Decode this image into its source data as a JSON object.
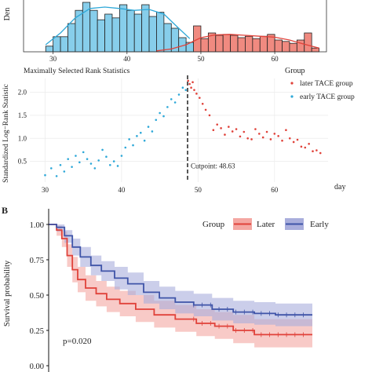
{
  "panel_b_letter": "B",
  "chart_data": [
    {
      "type": "histogram",
      "ylabel": "Den",
      "x_ticks": [
        30,
        40,
        50,
        60
      ],
      "xlim": [
        26,
        67
      ],
      "colors": {
        "early": "#87CEEB",
        "later": "#F08A80",
        "early_line": "#2EA8D8",
        "later_line": "#E0423A"
      },
      "bars_early": [
        {
          "x0": 29,
          "x1": 30,
          "h": 0.12
        },
        {
          "x0": 30,
          "x1": 31,
          "h": 0.32
        },
        {
          "x0": 31,
          "x1": 32,
          "h": 0.32
        },
        {
          "x0": 32,
          "x1": 33,
          "h": 0.6
        },
        {
          "x0": 33,
          "x1": 34,
          "h": 0.88
        },
        {
          "x0": 34,
          "x1": 35,
          "h": 1.05
        },
        {
          "x0": 35,
          "x1": 36,
          "h": 0.88
        },
        {
          "x0": 36,
          "x1": 37,
          "h": 0.68
        },
        {
          "x0": 37,
          "x1": 38,
          "h": 0.8
        },
        {
          "x0": 38,
          "x1": 39,
          "h": 0.72
        },
        {
          "x0": 39,
          "x1": 40,
          "h": 1.0
        },
        {
          "x0": 40,
          "x1": 41,
          "h": 0.88
        },
        {
          "x0": 41,
          "x1": 42,
          "h": 0.8
        },
        {
          "x0": 42,
          "x1": 43,
          "h": 1.0
        },
        {
          "x0": 43,
          "x1": 44,
          "h": 0.75
        },
        {
          "x0": 44,
          "x1": 45,
          "h": 0.84
        },
        {
          "x0": 45,
          "x1": 46,
          "h": 0.6
        },
        {
          "x0": 46,
          "x1": 47,
          "h": 0.5
        },
        {
          "x0": 47,
          "x1": 48,
          "h": 0.3
        },
        {
          "x0": 48,
          "x1": 49,
          "h": 0.2
        }
      ],
      "bars_later": [
        {
          "x0": 48,
          "x1": 49,
          "h": 0.18
        },
        {
          "x0": 49,
          "x1": 50,
          "h": 0.55
        },
        {
          "x0": 50,
          "x1": 51,
          "h": 0.28
        },
        {
          "x0": 51,
          "x1": 52,
          "h": 0.4
        },
        {
          "x0": 52,
          "x1": 53,
          "h": 0.35
        },
        {
          "x0": 53,
          "x1": 54,
          "h": 0.37
        },
        {
          "x0": 54,
          "x1": 55,
          "h": 0.35
        },
        {
          "x0": 55,
          "x1": 56,
          "h": 0.3
        },
        {
          "x0": 56,
          "x1": 57,
          "h": 0.33
        },
        {
          "x0": 57,
          "x1": 58,
          "h": 0.28
        },
        {
          "x0": 58,
          "x1": 59,
          "h": 0.33
        },
        {
          "x0": 59,
          "x1": 60,
          "h": 0.37
        },
        {
          "x0": 60,
          "x1": 61,
          "h": 0.25
        },
        {
          "x0": 61,
          "x1": 62,
          "h": 0.22
        },
        {
          "x0": 62,
          "x1": 63,
          "h": 0.18
        },
        {
          "x0": 63,
          "x1": 64,
          "h": 0.25
        },
        {
          "x0": 64,
          "x1": 65,
          "h": 0.4
        },
        {
          "x0": 65,
          "x1": 66,
          "h": 0.08
        }
      ],
      "density_early": [
        [
          29,
          0.15
        ],
        [
          31,
          0.4
        ],
        [
          33,
          0.72
        ],
        [
          35,
          0.92
        ],
        [
          37,
          0.95
        ],
        [
          39,
          0.92
        ],
        [
          41,
          0.88
        ],
        [
          43,
          0.9
        ],
        [
          45,
          0.8
        ],
        [
          47,
          0.5
        ],
        [
          48.5,
          0.28
        ]
      ],
      "density_later": [
        [
          44,
          0.02
        ],
        [
          46,
          0.06
        ],
        [
          48,
          0.15
        ],
        [
          50,
          0.3
        ],
        [
          52,
          0.36
        ],
        [
          54,
          0.37
        ],
        [
          56,
          0.35
        ],
        [
          58,
          0.33
        ],
        [
          60,
          0.31
        ],
        [
          62,
          0.25
        ],
        [
          64,
          0.16
        ],
        [
          66,
          0.08
        ]
      ]
    },
    {
      "type": "scatter",
      "title": "Maximally Selected Rank Statistics",
      "ylabel": "Standardized Log−Rank Statistic",
      "xlabel": "day",
      "x_ticks": [
        30,
        40,
        50,
        60
      ],
      "y_ticks": [
        0.5,
        1.0,
        1.5,
        2.0
      ],
      "xlim": [
        28,
        67
      ],
      "ylim": [
        0.05,
        2.3
      ],
      "cutpoint": 48.63,
      "cutpoint_label": "Cutpoint: 48.63",
      "legend_title": "Group",
      "legend_position": "right",
      "series": [
        {
          "name": "later TACE group",
          "color": "#E0423A",
          "points": [
            [
              48.7,
              2.25
            ],
            [
              48.9,
              2.18
            ],
            [
              49.1,
              2.1
            ],
            [
              49.3,
              2.22
            ],
            [
              49.5,
              2.05
            ],
            [
              49.8,
              1.97
            ],
            [
              50.2,
              1.88
            ],
            [
              50.6,
              1.75
            ],
            [
              51.0,
              1.62
            ],
            [
              51.5,
              1.5
            ],
            [
              52.0,
              1.18
            ],
            [
              52.5,
              1.3
            ],
            [
              53.0,
              1.22
            ],
            [
              53.5,
              1.08
            ],
            [
              54.0,
              1.25
            ],
            [
              54.5,
              1.15
            ],
            [
              55.0,
              1.2
            ],
            [
              55.5,
              1.04
            ],
            [
              56.0,
              1.14
            ],
            [
              56.5,
              1.0
            ],
            [
              57.0,
              0.98
            ],
            [
              57.5,
              1.2
            ],
            [
              58.0,
              1.1
            ],
            [
              58.5,
              1.02
            ],
            [
              59.0,
              1.14
            ],
            [
              59.5,
              0.98
            ],
            [
              60.0,
              1.1
            ],
            [
              60.5,
              1.05
            ],
            [
              61.0,
              0.95
            ],
            [
              61.5,
              1.18
            ],
            [
              62.0,
              1.0
            ],
            [
              62.5,
              0.92
            ],
            [
              63.0,
              0.97
            ],
            [
              63.5,
              0.82
            ],
            [
              64.0,
              0.8
            ],
            [
              64.5,
              0.88
            ],
            [
              65.0,
              0.72
            ],
            [
              65.5,
              0.74
            ],
            [
              66.0,
              0.68
            ]
          ]
        },
        {
          "name": "early TACE group",
          "color": "#2EA8D8",
          "points": [
            [
              30.0,
              0.2
            ],
            [
              30.8,
              0.35
            ],
            [
              31.5,
              0.18
            ],
            [
              32.0,
              0.42
            ],
            [
              32.5,
              0.28
            ],
            [
              33.0,
              0.55
            ],
            [
              33.5,
              0.38
            ],
            [
              34.0,
              0.62
            ],
            [
              34.5,
              0.48
            ],
            [
              35.0,
              0.7
            ],
            [
              35.5,
              0.55
            ],
            [
              36.0,
              0.45
            ],
            [
              36.5,
              0.35
            ],
            [
              37.0,
              0.52
            ],
            [
              37.5,
              0.75
            ],
            [
              38.0,
              0.6
            ],
            [
              38.5,
              0.42
            ],
            [
              39.0,
              0.5
            ],
            [
              39.5,
              0.4
            ],
            [
              40.0,
              0.62
            ],
            [
              40.5,
              0.8
            ],
            [
              41.0,
              0.98
            ],
            [
              41.5,
              0.85
            ],
            [
              42.0,
              1.05
            ],
            [
              42.5,
              1.12
            ],
            [
              43.0,
              0.95
            ],
            [
              43.5,
              1.25
            ],
            [
              44.0,
              1.15
            ],
            [
              44.5,
              1.4
            ],
            [
              45.0,
              1.55
            ],
            [
              45.5,
              1.48
            ],
            [
              46.0,
              1.68
            ],
            [
              46.5,
              1.85
            ],
            [
              47.0,
              1.78
            ],
            [
              47.5,
              1.95
            ],
            [
              48.0,
              2.1
            ],
            [
              48.4,
              2.05
            ]
          ]
        }
      ]
    },
    {
      "type": "line",
      "subtype": "kaplan-meier",
      "ylabel": "Survival probability",
      "y_ticks": [
        0.0,
        0.25,
        0.5,
        0.75,
        1.0
      ],
      "y_tick_labels": [
        "0.00",
        "0.25",
        "0.50",
        "0.75",
        "1.00"
      ],
      "ylim": [
        0,
        1.02
      ],
      "xlim": [
        0,
        1
      ],
      "legend_title": "Group",
      "legend_position": "top-right",
      "annotation": "p=0.020",
      "series": [
        {
          "name": "Later",
          "color": "#E0423A",
          "band_color": "#F4A7A2",
          "points": [
            [
              0,
              1.0
            ],
            [
              0.03,
              0.96
            ],
            [
              0.05,
              0.9
            ],
            [
              0.07,
              0.78
            ],
            [
              0.09,
              0.68
            ],
            [
              0.11,
              0.61
            ],
            [
              0.14,
              0.55
            ],
            [
              0.18,
              0.51
            ],
            [
              0.22,
              0.47
            ],
            [
              0.27,
              0.44
            ],
            [
              0.33,
              0.4
            ],
            [
              0.4,
              0.36
            ],
            [
              0.48,
              0.33
            ],
            [
              0.56,
              0.3
            ],
            [
              0.63,
              0.28
            ],
            [
              0.7,
              0.25
            ],
            [
              0.78,
              0.22
            ],
            [
              0.88,
              0.22
            ],
            [
              1.0,
              0.22
            ]
          ],
          "upper": [
            [
              0,
              1.0
            ],
            [
              0.03,
              0.99
            ],
            [
              0.05,
              0.95
            ],
            [
              0.07,
              0.86
            ],
            [
              0.09,
              0.77
            ],
            [
              0.11,
              0.7
            ],
            [
              0.14,
              0.64
            ],
            [
              0.18,
              0.6
            ],
            [
              0.22,
              0.56
            ],
            [
              0.27,
              0.53
            ],
            [
              0.33,
              0.5
            ],
            [
              0.4,
              0.46
            ],
            [
              0.48,
              0.43
            ],
            [
              0.56,
              0.4
            ],
            [
              0.63,
              0.38
            ],
            [
              0.7,
              0.36
            ],
            [
              0.78,
              0.33
            ],
            [
              0.88,
              0.33
            ],
            [
              1.0,
              0.33
            ]
          ],
          "lower": [
            [
              0,
              1.0
            ],
            [
              0.03,
              0.92
            ],
            [
              0.05,
              0.84
            ],
            [
              0.07,
              0.7
            ],
            [
              0.09,
              0.59
            ],
            [
              0.11,
              0.52
            ],
            [
              0.14,
              0.46
            ],
            [
              0.18,
              0.42
            ],
            [
              0.22,
              0.38
            ],
            [
              0.27,
              0.35
            ],
            [
              0.33,
              0.31
            ],
            [
              0.4,
              0.27
            ],
            [
              0.48,
              0.24
            ],
            [
              0.56,
              0.21
            ],
            [
              0.63,
              0.19
            ],
            [
              0.7,
              0.16
            ],
            [
              0.78,
              0.13
            ],
            [
              0.88,
              0.13
            ],
            [
              1.0,
              0.13
            ]
          ]
        },
        {
          "name": "Early",
          "color": "#3F54A8",
          "band_color": "#A9AEDC",
          "points": [
            [
              0,
              1.0
            ],
            [
              0.03,
              0.98
            ],
            [
              0.06,
              0.92
            ],
            [
              0.09,
              0.84
            ],
            [
              0.12,
              0.77
            ],
            [
              0.16,
              0.71
            ],
            [
              0.2,
              0.67
            ],
            [
              0.25,
              0.62
            ],
            [
              0.3,
              0.58
            ],
            [
              0.36,
              0.52
            ],
            [
              0.42,
              0.48
            ],
            [
              0.48,
              0.45
            ],
            [
              0.55,
              0.43
            ],
            [
              0.62,
              0.4
            ],
            [
              0.7,
              0.38
            ],
            [
              0.78,
              0.37
            ],
            [
              0.86,
              0.36
            ],
            [
              1.0,
              0.36
            ]
          ],
          "upper": [
            [
              0,
              1.0
            ],
            [
              0.03,
              1.0
            ],
            [
              0.06,
              0.96
            ],
            [
              0.09,
              0.9
            ],
            [
              0.12,
              0.84
            ],
            [
              0.16,
              0.78
            ],
            [
              0.2,
              0.74
            ],
            [
              0.25,
              0.7
            ],
            [
              0.3,
              0.66
            ],
            [
              0.36,
              0.6
            ],
            [
              0.42,
              0.56
            ],
            [
              0.48,
              0.53
            ],
            [
              0.55,
              0.51
            ],
            [
              0.62,
              0.48
            ],
            [
              0.7,
              0.46
            ],
            [
              0.78,
              0.45
            ],
            [
              0.86,
              0.44
            ],
            [
              1.0,
              0.44
            ]
          ],
          "lower": [
            [
              0,
              1.0
            ],
            [
              0.03,
              0.95
            ],
            [
              0.06,
              0.87
            ],
            [
              0.09,
              0.78
            ],
            [
              0.12,
              0.7
            ],
            [
              0.16,
              0.64
            ],
            [
              0.2,
              0.6
            ],
            [
              0.25,
              0.54
            ],
            [
              0.3,
              0.5
            ],
            [
              0.36,
              0.44
            ],
            [
              0.42,
              0.4
            ],
            [
              0.48,
              0.37
            ],
            [
              0.55,
              0.35
            ],
            [
              0.62,
              0.32
            ],
            [
              0.7,
              0.3
            ],
            [
              0.78,
              0.29
            ],
            [
              0.86,
              0.28
            ],
            [
              1.0,
              0.28
            ]
          ]
        }
      ]
    }
  ]
}
